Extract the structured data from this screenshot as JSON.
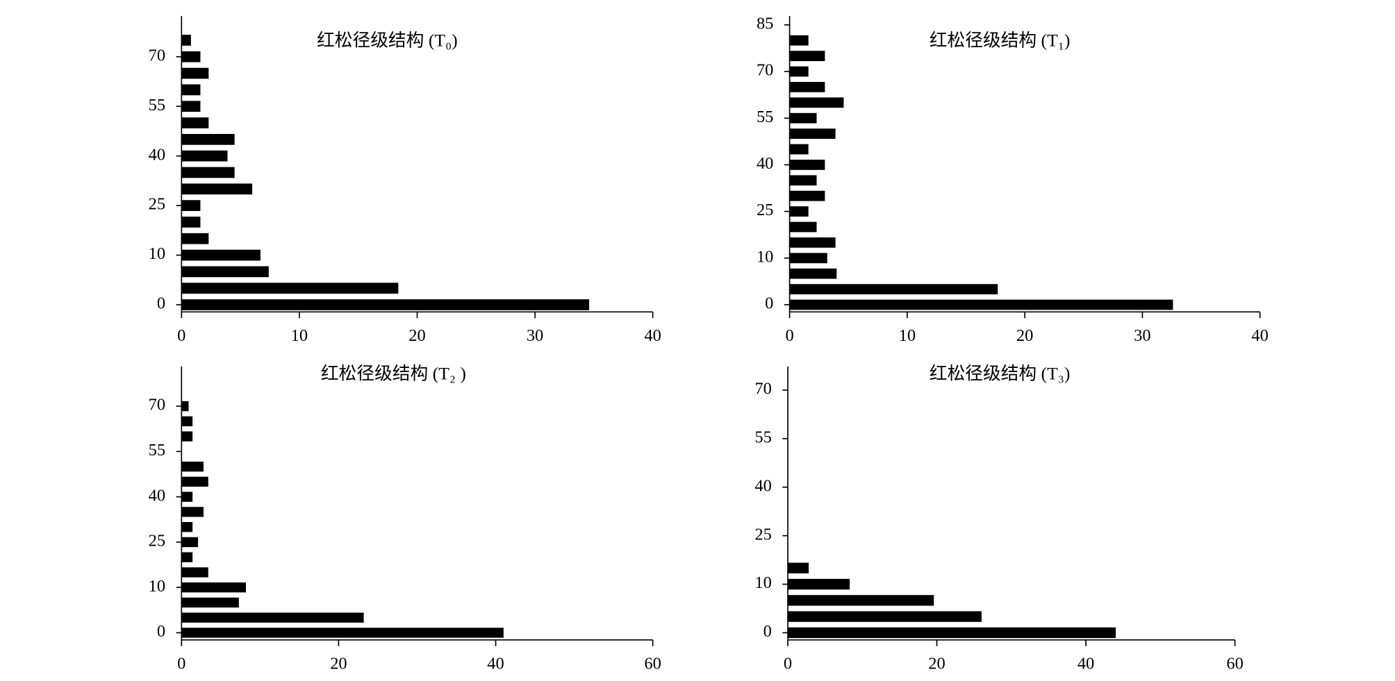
{
  "chart_data": [
    {
      "type": "bar",
      "orientation": "horizontal",
      "title": "红松径级结构 (T₀)",
      "color": "#000000",
      "categories": [
        "0",
        null,
        null,
        "10",
        null,
        null,
        "25",
        null,
        null,
        "40",
        null,
        null,
        "55",
        null,
        null,
        "70",
        null
      ],
      "values": [
        34.6,
        18.4,
        7.4,
        6.7,
        2.3,
        1.6,
        1.6,
        6.0,
        4.5,
        3.9,
        4.5,
        2.3,
        1.6,
        1.6,
        2.3,
        1.6,
        0.8
      ],
      "xlim": [
        0,
        40
      ],
      "xticks": [
        0,
        10,
        20,
        30,
        40
      ]
    },
    {
      "type": "bar",
      "orientation": "horizontal",
      "title": "红松径级结构 (T₁)",
      "color": "#000000",
      "categories": [
        "0",
        null,
        null,
        "10",
        null,
        null,
        "25",
        null,
        null,
        "40",
        null,
        null,
        "55",
        null,
        null,
        "70",
        null,
        null,
        "85"
      ],
      "values": [
        32.6,
        17.7,
        4.0,
        3.2,
        3.9,
        2.3,
        1.6,
        3.0,
        2.3,
        3.0,
        1.6,
        3.9,
        2.3,
        4.6,
        3.0,
        1.6,
        3.0,
        1.6,
        0
      ],
      "xlim": [
        0,
        40
      ],
      "xticks": [
        0,
        10,
        20,
        30,
        40
      ]
    },
    {
      "type": "bar",
      "orientation": "horizontal",
      "title": "红松径级结构 (T₂ )",
      "color": "#000000",
      "categories": [
        "0",
        null,
        null,
        "10",
        null,
        null,
        "25",
        null,
        null,
        "40",
        null,
        null,
        "55",
        null,
        null,
        "70"
      ],
      "values": [
        41,
        23.2,
        7.3,
        8.2,
        3.4,
        1.4,
        2.1,
        1.4,
        2.8,
        1.4,
        3.4,
        2.8,
        0,
        1.4,
        1.4,
        0.9
      ],
      "xlim": [
        0,
        60
      ],
      "xticks": [
        0,
        20,
        40,
        60
      ]
    },
    {
      "type": "bar",
      "orientation": "horizontal",
      "title": "红松径级结构 (T₃)",
      "color": "#000000",
      "categories": [
        "0",
        null,
        null,
        "10",
        null,
        null,
        "25",
        null,
        null,
        "40",
        null,
        null,
        "55",
        null,
        null,
        "70"
      ],
      "values": [
        44,
        26,
        19.6,
        8.3,
        2.8,
        0,
        0,
        0,
        0,
        0,
        0,
        0,
        0,
        0,
        0,
        0
      ],
      "xlim": [
        0,
        60
      ],
      "xticks": [
        0,
        20,
        40,
        60
      ]
    }
  ]
}
